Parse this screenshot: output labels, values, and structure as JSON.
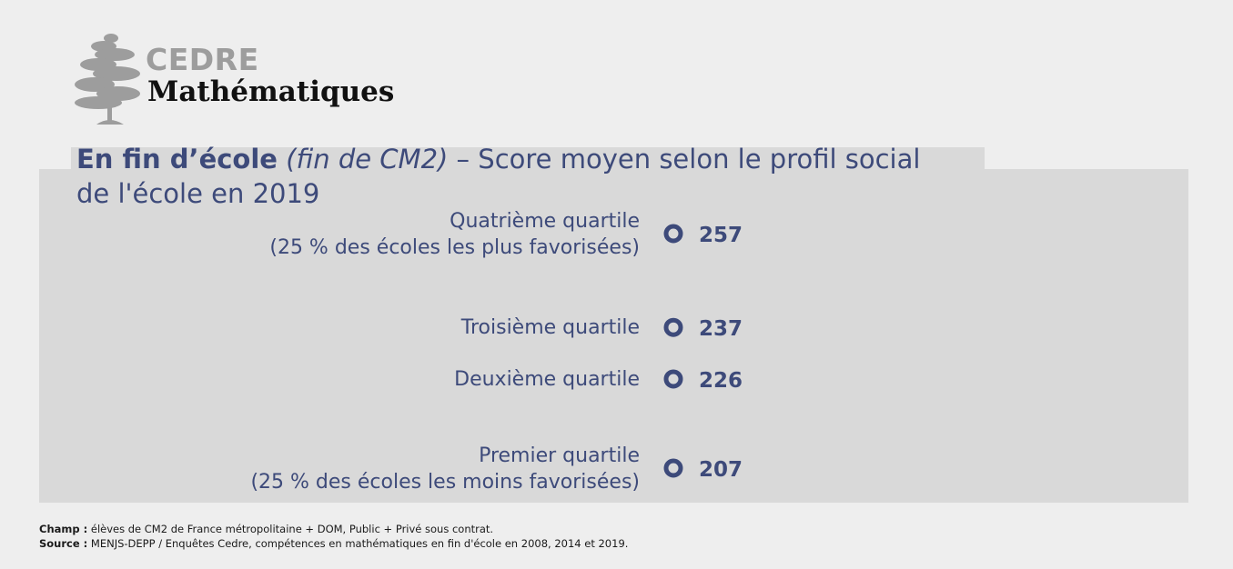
{
  "logo": {
    "brand": "CEDRE",
    "subject": "Mathématiques",
    "icon": "cedar-tree-icon"
  },
  "title": {
    "lead_bold": "En fin d’école",
    "lead_italic": "(fin de CM2)",
    "rest_line1": " – Score moyen selon le profil social",
    "rest_line2": "de l'école en 2019"
  },
  "chart_data": {
    "type": "scatter",
    "categories": [
      {
        "label_line1": "Quatrième quartile",
        "label_line2": "(25 % des écoles les plus favorisées)"
      },
      {
        "label_line1": "Troisième quartile",
        "label_line2": ""
      },
      {
        "label_line1": "Deuxième quartile",
        "label_line2": ""
      },
      {
        "label_line1": "Premier quartile",
        "label_line2": "(25 % des écoles les moins favorisées)"
      }
    ],
    "values": [
      257,
      237,
      226,
      207
    ],
    "value_labels": [
      "257",
      "237",
      "226",
      "207"
    ],
    "marker_color": "#3d4a7a",
    "grid": false
  },
  "notes": {
    "champ_label": "Champ :",
    "champ_text": " élèves de CM2 de France métropolitaine + DOM, Public + Privé sous contrat.",
    "source_label": "Source :",
    "source_text": " MENJS-DEPP / Enquêtes Cedre, compétences en mathématiques en fin d'école en 2008, 2014 et 2019."
  }
}
